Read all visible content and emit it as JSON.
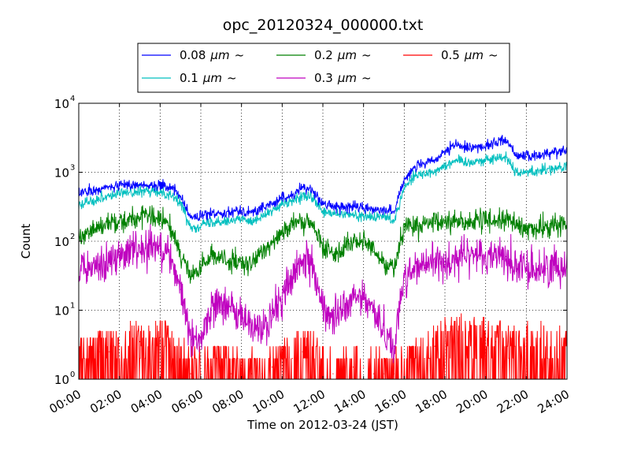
{
  "chart_data": {
    "type": "line",
    "title": "opc_20120324_000000.txt",
    "xlabel": "Time on 2012-03-24 (JST)",
    "ylabel": "Count",
    "x_unit": "hour",
    "xlim": [
      0,
      24
    ],
    "ylim": [
      1,
      10000
    ],
    "yscale": "log",
    "grid": true,
    "legend_position": "above plot",
    "x_ticks": [
      {
        "value": 0,
        "label": "00:00"
      },
      {
        "value": 2,
        "label": "02:00"
      },
      {
        "value": 4,
        "label": "04:00"
      },
      {
        "value": 6,
        "label": "06:00"
      },
      {
        "value": 8,
        "label": "08:00"
      },
      {
        "value": 10,
        "label": "10:00"
      },
      {
        "value": 12,
        "label": "12:00"
      },
      {
        "value": 14,
        "label": "14:00"
      },
      {
        "value": 16,
        "label": "16:00"
      },
      {
        "value": 18,
        "label": "18:00"
      },
      {
        "value": 20,
        "label": "20:00"
      },
      {
        "value": 22,
        "label": "22:00"
      },
      {
        "value": 24,
        "label": "24:00"
      }
    ],
    "y_ticks": [
      {
        "value": 1,
        "base": "10",
        "exp": "0"
      },
      {
        "value": 10,
        "base": "10",
        "exp": "1"
      },
      {
        "value": 100,
        "base": "10",
        "exp": "2"
      },
      {
        "value": 1000,
        "base": "10",
        "exp": "3"
      },
      {
        "value": 10000,
        "base": "10",
        "exp": "4"
      }
    ],
    "x": [
      0,
      0.5,
      1,
      1.5,
      2,
      2.5,
      3,
      3.5,
      4,
      4.5,
      5,
      5.5,
      6,
      6.5,
      7,
      7.5,
      8,
      8.5,
      9,
      9.5,
      10,
      10.5,
      11,
      11.5,
      12,
      12.5,
      13,
      13.5,
      14,
      14.5,
      15,
      15.5,
      16,
      16.5,
      17,
      17.5,
      18,
      18.5,
      19,
      19.5,
      20,
      20.5,
      21,
      21.5,
      22,
      22.5,
      23,
      23.5,
      24
    ],
    "series": [
      {
        "name": "0.08",
        "unit": "μm",
        "suffix": "~",
        "color": "#0000ff",
        "noise": 0.04,
        "values": [
          500,
          520,
          560,
          610,
          640,
          660,
          660,
          660,
          650,
          600,
          450,
          220,
          230,
          250,
          260,
          270,
          280,
          260,
          300,
          350,
          420,
          460,
          600,
          550,
          350,
          320,
          310,
          320,
          300,
          290,
          300,
          260,
          800,
          1200,
          1300,
          1500,
          1900,
          2500,
          2300,
          2300,
          2400,
          2700,
          3000,
          1800,
          1700,
          1700,
          1900,
          2000,
          2100
        ]
      },
      {
        "name": "0.1",
        "unit": "μm",
        "suffix": "~",
        "color": "#00bfbf",
        "noise": 0.04,
        "values": [
          350,
          380,
          420,
          460,
          500,
          510,
          520,
          520,
          520,
          480,
          360,
          160,
          170,
          190,
          200,
          200,
          210,
          200,
          230,
          270,
          340,
          380,
          450,
          420,
          260,
          250,
          240,
          240,
          230,
          220,
          230,
          200,
          600,
          900,
          950,
          1050,
          1250,
          1500,
          1400,
          1450,
          1500,
          1600,
          1700,
          1000,
          1000,
          1050,
          1100,
          1150,
          1200
        ]
      },
      {
        "name": "0.2",
        "unit": "μm",
        "suffix": "~",
        "color": "#008000",
        "noise": 0.08,
        "values": [
          120,
          140,
          160,
          185,
          200,
          210,
          220,
          225,
          210,
          160,
          70,
          30,
          40,
          60,
          60,
          50,
          45,
          45,
          70,
          100,
          140,
          170,
          190,
          170,
          80,
          70,
          80,
          100,
          100,
          70,
          50,
          40,
          180,
          160,
          170,
          180,
          190,
          200,
          190,
          190,
          200,
          200,
          210,
          170,
          150,
          150,
          160,
          170,
          180
        ]
      },
      {
        "name": "0.3",
        "unit": "μm",
        "suffix": "~",
        "color": "#bf00bf",
        "noise": 0.14,
        "values": [
          35,
          40,
          45,
          50,
          60,
          70,
          80,
          90,
          90,
          60,
          20,
          4,
          4,
          10,
          15,
          10,
          8,
          6,
          5,
          8,
          16,
          30,
          50,
          50,
          10,
          8,
          10,
          15,
          15,
          10,
          5,
          3,
          30,
          40,
          45,
          50,
          50,
          55,
          60,
          65,
          60,
          65,
          60,
          40,
          40,
          40,
          40,
          45,
          45
        ]
      },
      {
        "name": "0.5",
        "unit": "μm",
        "suffix": "~",
        "color": "#ff0000",
        "noise": 0.3,
        "values": [
          2,
          2,
          2.5,
          2.5,
          3,
          3,
          3.5,
          3.5,
          3.5,
          3,
          2,
          1.2,
          1.2,
          1.5,
          1.5,
          1.2,
          1.2,
          1.2,
          1.2,
          1.5,
          2,
          2,
          2.5,
          2.5,
          1.5,
          1.2,
          1.5,
          1.5,
          1.5,
          1.2,
          1.2,
          1.2,
          1.5,
          2,
          2,
          3,
          3.5,
          4,
          4,
          4,
          4,
          3.5,
          3.5,
          3,
          3,
          3,
          3,
          3,
          3
        ]
      }
    ]
  }
}
